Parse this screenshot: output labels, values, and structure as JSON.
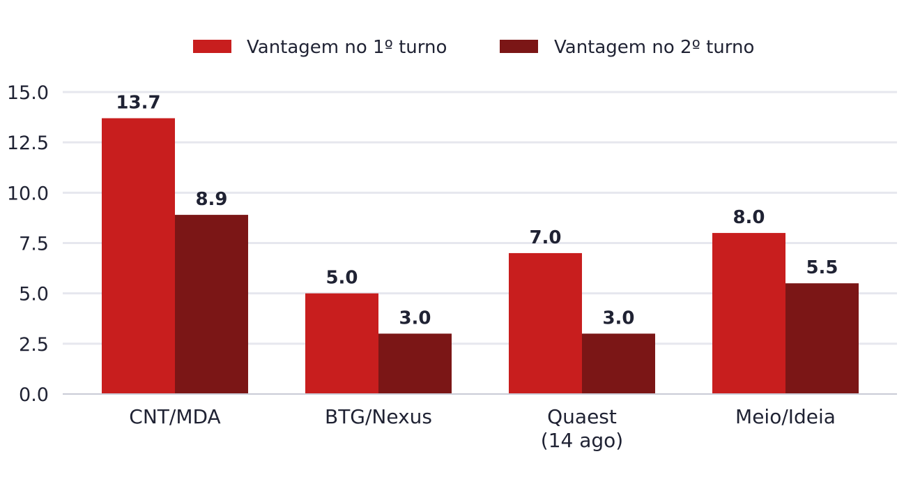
{
  "chart_data": {
    "type": "bar",
    "title": "",
    "xlabel": "",
    "ylabel": "",
    "categories": [
      [
        "CNT/MDA"
      ],
      [
        "BTG/Nexus"
      ],
      [
        "Quaest",
        "(14 ago)"
      ],
      [
        "Meio/Ideia"
      ]
    ],
    "series": [
      {
        "name": "Vantagem no 1º turno",
        "color": "#c81e1e",
        "values": [
          13.7,
          5.0,
          7.0,
          8.0
        ]
      },
      {
        "name": "Vantagem no 2º turno",
        "color": "#7b1616",
        "values": [
          8.9,
          3.0,
          3.0,
          5.5
        ]
      }
    ],
    "ylim": [
      0,
      15
    ],
    "yticks": [
      "0.0",
      "2.5",
      "5.0",
      "7.5",
      "10.0",
      "12.5",
      "15.0"
    ],
    "ytick_values": [
      0,
      2.5,
      5,
      7.5,
      10,
      12.5,
      15
    ],
    "data_labels": [
      [
        "13.7",
        "5.0",
        "7.0",
        "8.0"
      ],
      [
        "8.9",
        "3.0",
        "3.0",
        "5.5"
      ]
    ],
    "grid": true,
    "legend": "top-center",
    "colors": {
      "grid": "#e6e7ee",
      "axis": "#c9cbd6",
      "text": "#1f2233"
    }
  }
}
